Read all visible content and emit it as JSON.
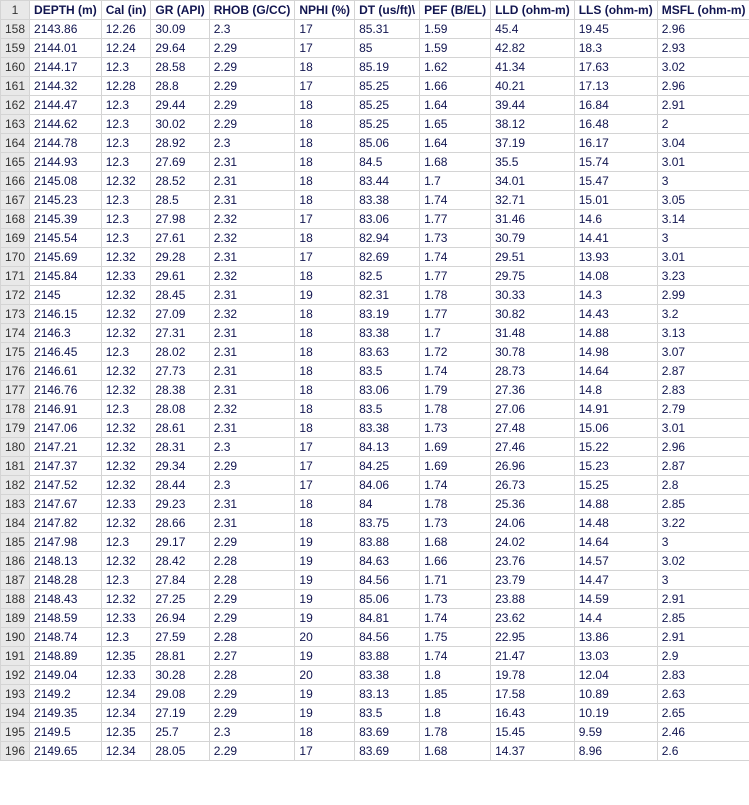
{
  "table": {
    "header_rownum": "1",
    "columns": [
      "DEPTH (m)",
      "Cal (in)",
      "GR (API)",
      "RHOB (G/CC)",
      "NPHI (%)",
      "DT (us/ft)\\",
      "PEF (B/EL)",
      "LLD (ohm-m)",
      "LLS (ohm-m)",
      "MSFL (ohm-m)"
    ],
    "col_classes": [
      "col-depth",
      "col-cal",
      "col-gr",
      "col-rhob",
      "col-nphi",
      "col-dt",
      "col-pef",
      "col-lld",
      "col-lls",
      "col-msfl"
    ],
    "rows": [
      {
        "n": "158",
        "v": [
          "2143.86",
          "12.26",
          "30.09",
          "2.3",
          "17",
          "85.31",
          "1.59",
          "45.4",
          "19.45",
          "2.96"
        ]
      },
      {
        "n": "159",
        "v": [
          "2144.01",
          "12.24",
          "29.64",
          "2.29",
          "17",
          "85",
          "1.59",
          "42.82",
          "18.3",
          "2.93"
        ]
      },
      {
        "n": "160",
        "v": [
          "2144.17",
          "12.3",
          "28.58",
          "2.29",
          "18",
          "85.19",
          "1.62",
          "41.34",
          "17.63",
          "3.02"
        ]
      },
      {
        "n": "161",
        "v": [
          "2144.32",
          "12.28",
          "28.8",
          "2.29",
          "17",
          "85.25",
          "1.66",
          "40.21",
          "17.13",
          "2.96"
        ]
      },
      {
        "n": "162",
        "v": [
          "2144.47",
          "12.3",
          "29.44",
          "2.29",
          "18",
          "85.25",
          "1.64",
          "39.44",
          "16.84",
          "2.91"
        ]
      },
      {
        "n": "163",
        "v": [
          "2144.62",
          "12.3",
          "30.02",
          "2.29",
          "18",
          "85.25",
          "1.65",
          "38.12",
          "16.48",
          "2"
        ]
      },
      {
        "n": "164",
        "v": [
          "2144.78",
          "12.3",
          "28.92",
          "2.3",
          "18",
          "85.06",
          "1.64",
          "37.19",
          "16.17",
          "3.04"
        ]
      },
      {
        "n": "165",
        "v": [
          "2144.93",
          "12.3",
          "27.69",
          "2.31",
          "18",
          "84.5",
          "1.68",
          "35.5",
          "15.74",
          "3.01"
        ]
      },
      {
        "n": "166",
        "v": [
          "2145.08",
          "12.32",
          "28.52",
          "2.31",
          "18",
          "83.44",
          "1.7",
          "34.01",
          "15.47",
          "3"
        ]
      },
      {
        "n": "167",
        "v": [
          "2145.23",
          "12.3",
          "28.5",
          "2.31",
          "18",
          "83.38",
          "1.74",
          "32.71",
          "15.01",
          "3.05"
        ]
      },
      {
        "n": "168",
        "v": [
          "2145.39",
          "12.3",
          "27.98",
          "2.32",
          "17",
          "83.06",
          "1.77",
          "31.46",
          "14.6",
          "3.14"
        ]
      },
      {
        "n": "169",
        "v": [
          "2145.54",
          "12.3",
          "27.61",
          "2.32",
          "18",
          "82.94",
          "1.73",
          "30.79",
          "14.41",
          "3"
        ]
      },
      {
        "n": "170",
        "v": [
          "2145.69",
          "12.32",
          "29.28",
          "2.31",
          "17",
          "82.69",
          "1.74",
          "29.51",
          "13.93",
          "3.01"
        ]
      },
      {
        "n": "171",
        "v": [
          "2145.84",
          "12.33",
          "29.61",
          "2.32",
          "18",
          "82.5",
          "1.77",
          "29.75",
          "14.08",
          "3.23"
        ]
      },
      {
        "n": "172",
        "v": [
          "2145",
          "12.32",
          "28.45",
          "2.31",
          "19",
          "82.31",
          "1.78",
          "30.33",
          "14.3",
          "2.99"
        ]
      },
      {
        "n": "173",
        "v": [
          "2146.15",
          "12.32",
          "27.09",
          "2.32",
          "18",
          "83.19",
          "1.77",
          "30.82",
          "14.43",
          "3.2"
        ]
      },
      {
        "n": "174",
        "v": [
          "2146.3",
          "12.32",
          "27.31",
          "2.31",
          "18",
          "83.38",
          "1.7",
          "31.48",
          "14.88",
          "3.13"
        ]
      },
      {
        "n": "175",
        "v": [
          "2146.45",
          "12.3",
          "28.02",
          "2.31",
          "18",
          "83.63",
          "1.72",
          "30.78",
          "14.98",
          "3.07"
        ]
      },
      {
        "n": "176",
        "v": [
          "2146.61",
          "12.32",
          "27.73",
          "2.31",
          "18",
          "83.5",
          "1.74",
          "28.73",
          "14.64",
          "2.87"
        ]
      },
      {
        "n": "177",
        "v": [
          "2146.76",
          "12.32",
          "28.38",
          "2.31",
          "18",
          "83.06",
          "1.79",
          "27.36",
          "14.8",
          "2.83"
        ]
      },
      {
        "n": "178",
        "v": [
          "2146.91",
          "12.3",
          "28.08",
          "2.32",
          "18",
          "83.5",
          "1.78",
          "27.06",
          "14.91",
          "2.79"
        ]
      },
      {
        "n": "179",
        "v": [
          "2147.06",
          "12.32",
          "28.61",
          "2.31",
          "18",
          "83.38",
          "1.73",
          "27.48",
          "15.06",
          "3.01"
        ]
      },
      {
        "n": "180",
        "v": [
          "2147.21",
          "12.32",
          "28.31",
          "2.3",
          "17",
          "84.13",
          "1.69",
          "27.46",
          "15.22",
          "2.96"
        ]
      },
      {
        "n": "181",
        "v": [
          "2147.37",
          "12.32",
          "29.34",
          "2.29",
          "17",
          "84.25",
          "1.69",
          "26.96",
          "15.23",
          "2.87"
        ]
      },
      {
        "n": "182",
        "v": [
          "2147.52",
          "12.32",
          "28.44",
          "2.3",
          "17",
          "84.06",
          "1.74",
          "26.73",
          "15.25",
          "2.8"
        ]
      },
      {
        "n": "183",
        "v": [
          "2147.67",
          "12.33",
          "29.23",
          "2.31",
          "18",
          "84",
          "1.78",
          "25.36",
          "14.88",
          "2.85"
        ]
      },
      {
        "n": "184",
        "v": [
          "2147.82",
          "12.32",
          "28.66",
          "2.31",
          "18",
          "83.75",
          "1.73",
          "24.06",
          "14.48",
          "3.22"
        ]
      },
      {
        "n": "185",
        "v": [
          "2147.98",
          "12.3",
          "29.17",
          "2.29",
          "19",
          "83.88",
          "1.68",
          "24.02",
          "14.64",
          "3"
        ]
      },
      {
        "n": "186",
        "v": [
          "2148.13",
          "12.32",
          "28.42",
          "2.28",
          "19",
          "84.63",
          "1.66",
          "23.76",
          "14.57",
          "3.02"
        ]
      },
      {
        "n": "187",
        "v": [
          "2148.28",
          "12.3",
          "27.84",
          "2.28",
          "19",
          "84.56",
          "1.71",
          "23.79",
          "14.47",
          "3"
        ]
      },
      {
        "n": "188",
        "v": [
          "2148.43",
          "12.32",
          "27.25",
          "2.29",
          "19",
          "85.06",
          "1.73",
          "23.88",
          "14.59",
          "2.91"
        ]
      },
      {
        "n": "189",
        "v": [
          "2148.59",
          "12.33",
          "26.94",
          "2.29",
          "19",
          "84.81",
          "1.74",
          "23.62",
          "14.4",
          "2.85"
        ]
      },
      {
        "n": "190",
        "v": [
          "2148.74",
          "12.3",
          "27.59",
          "2.28",
          "20",
          "84.56",
          "1.75",
          "22.95",
          "13.86",
          "2.91"
        ]
      },
      {
        "n": "191",
        "v": [
          "2148.89",
          "12.35",
          "28.81",
          "2.27",
          "19",
          "83.88",
          "1.74",
          "21.47",
          "13.03",
          "2.9"
        ]
      },
      {
        "n": "192",
        "v": [
          "2149.04",
          "12.33",
          "30.28",
          "2.28",
          "20",
          "83.38",
          "1.8",
          "19.78",
          "12.04",
          "2.83"
        ]
      },
      {
        "n": "193",
        "v": [
          "2149.2",
          "12.34",
          "29.08",
          "2.29",
          "19",
          "83.13",
          "1.85",
          "17.58",
          "10.89",
          "2.63"
        ]
      },
      {
        "n": "194",
        "v": [
          "2149.35",
          "12.34",
          "27.19",
          "2.29",
          "19",
          "83.5",
          "1.8",
          "16.43",
          "10.19",
          "2.65"
        ]
      },
      {
        "n": "195",
        "v": [
          "2149.5",
          "12.35",
          "25.7",
          "2.3",
          "18",
          "83.69",
          "1.78",
          "15.45",
          "9.59",
          "2.46"
        ]
      },
      {
        "n": "196",
        "v": [
          "2149.65",
          "12.34",
          "28.05",
          "2.29",
          "17",
          "83.69",
          "1.68",
          "14.37",
          "8.96",
          "2.6"
        ]
      }
    ]
  }
}
